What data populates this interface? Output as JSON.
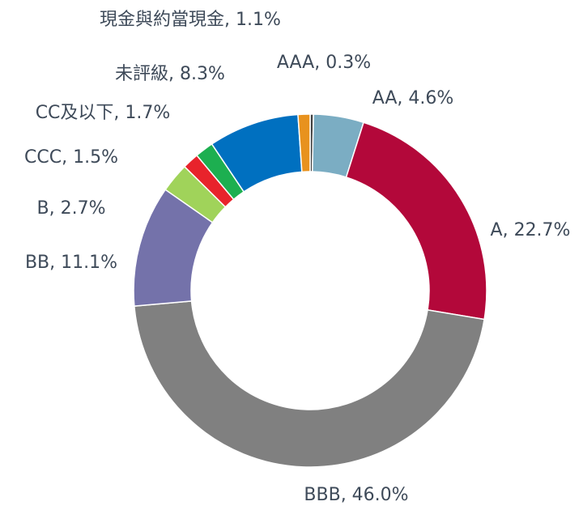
{
  "chart_data": {
    "type": "donut",
    "labels": [
      "AAA, 0.3%",
      "AA, 4.6%",
      "A, 22.7%",
      "BBB, 46.0%",
      "BB, 11.1%",
      "B, 2.7%",
      "CCC, 1.5%",
      "CC及以下, 1.7%",
      "未評級, 8.3%",
      "現金與約當現金, 1.1%"
    ],
    "values": [
      0.3,
      4.6,
      22.7,
      46.0,
      11.1,
      2.7,
      1.5,
      1.7,
      8.3,
      1.1
    ],
    "colors": [
      "#3f3f3f",
      "#7badc3",
      "#b3083a",
      "#808080",
      "#7472aa",
      "#a0d35a",
      "#e8232b",
      "#1daf50",
      "#0070c0",
      "#e8921e"
    ]
  }
}
